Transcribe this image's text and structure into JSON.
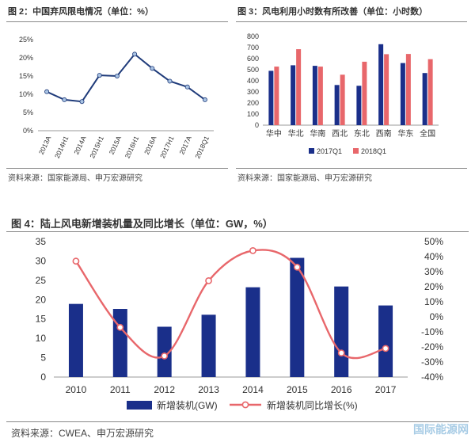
{
  "fig2": {
    "title": "图 2：中国弃风限电情况（单位：%）",
    "source": "资料来源：国家能源局、申万宏源研究",
    "chart_data": {
      "type": "line",
      "categories": [
        "2013A",
        "2014H1",
        "2014A",
        "2015H1",
        "2015A",
        "2016H1",
        "2016A",
        "2017H1",
        "2017A",
        "2018Q1"
      ],
      "values": [
        10.7,
        8.5,
        8.0,
        15.2,
        15.0,
        21.0,
        17.1,
        13.6,
        12.0,
        8.5
      ],
      "ylim": [
        0,
        25
      ],
      "yticks": [
        "0%",
        "5%",
        "10%",
        "15%",
        "20%",
        "25%"
      ],
      "line_color": "#1f3b7a",
      "marker_color": "#a9c3e3"
    }
  },
  "fig3": {
    "title": "图 3：风电利用小时数有所改善（单位：小时数）",
    "source": "资料来源：国家能源局、申万宏源研究",
    "chart_data": {
      "type": "bar",
      "categories": [
        "华中",
        "华北",
        "华南",
        "西北",
        "东北",
        "西南",
        "华东",
        "全国"
      ],
      "series": [
        {
          "name": "2017Q1",
          "color": "#1a2f8a",
          "values": [
            490,
            540,
            535,
            362,
            355,
            730,
            560,
            470
          ]
        },
        {
          "name": "2018Q1",
          "color": "#e8676b",
          "values": [
            528,
            685,
            528,
            455,
            572,
            640,
            642,
            595
          ]
        }
      ],
      "ylim": [
        0,
        800
      ],
      "yticks": [
        "0",
        "100",
        "200",
        "300",
        "400",
        "500",
        "600",
        "700",
        "800"
      ]
    }
  },
  "fig4": {
    "title": "图 4：陆上风电新增装机量及同比增长（单位：GW，%）",
    "source": "资料来源：CWEA、申万宏源研究",
    "chart_data": {
      "type": "bar",
      "categories": [
        "2010",
        "2011",
        "2012",
        "2013",
        "2014",
        "2015",
        "2016",
        "2017"
      ],
      "series": [
        {
          "name": "新增装机(GW)",
          "color": "#1a2f8a",
          "axis": "left",
          "values": [
            18.9,
            17.6,
            13.0,
            16.1,
            23.2,
            30.8,
            23.4,
            18.5
          ]
        },
        {
          "name": "新增装机同比增长(%)",
          "color": "#e8676b",
          "axis": "right",
          "values": [
            37,
            -7,
            -26,
            24,
            44,
            33,
            -24,
            -21
          ]
        }
      ],
      "ylim_left": [
        0,
        35
      ],
      "ylim_right": [
        -40,
        50
      ],
      "yticks_left": [
        "0",
        "5",
        "10",
        "15",
        "20",
        "25",
        "30",
        "35"
      ],
      "yticks_right": [
        "-40%",
        "-30%",
        "-20%",
        "-10%",
        "0%",
        "10%",
        "20%",
        "30%",
        "40%",
        "50%"
      ]
    }
  },
  "watermark": "国际能源网"
}
